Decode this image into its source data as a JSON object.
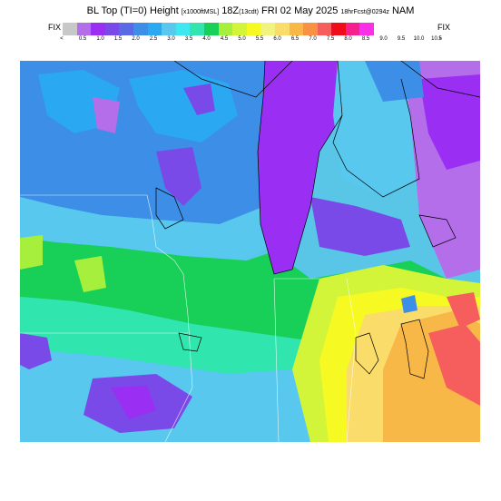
{
  "header": {
    "title_main": "BL Top (TI=0) Height",
    "title_units": "[x1000ftMSL]",
    "title_time": "18Z",
    "title_local": "(13cdt)",
    "title_date": "FRI 02 May 2025",
    "title_fcst": "18hrFcst@0294z",
    "title_model": "NAM"
  },
  "colorbar": {
    "fix_left": "FIX",
    "fix_right": "FIX",
    "less_symbol": "<",
    "greater_symbol": ">",
    "labels": [
      "0.5",
      "1.0",
      "1.5",
      "2.0",
      "2.5",
      "3.0",
      "3.5",
      "4.0",
      "4.5",
      "5.0",
      "5.5",
      "6.0",
      "6.5",
      "7.0",
      "7.5",
      "8.0",
      "8.5",
      "9.0",
      "9.5",
      "10.0",
      "10.5"
    ],
    "colors": [
      "#c8c8c8",
      "#b46eea",
      "#9a2ef2",
      "#7a4ae8",
      "#5a6ae4",
      "#3c8ee6",
      "#2aa8f2",
      "#58c8ee",
      "#3ee8f0",
      "#30e6ae",
      "#18d058",
      "#a6ef3c",
      "#d2f53a",
      "#f6fa22",
      "#f2f27e",
      "#fadc6a",
      "#f8b848",
      "#f89242",
      "#f65e5e",
      "#f00c18",
      "#f51f8e",
      "#f830e6"
    ]
  },
  "map": {
    "region": "Upper Midwest / Great Lakes",
    "colors": {
      "deep_purple": "#9a2ef2",
      "purple": "#7a4ae8",
      "lavender": "#b46eea",
      "blue": "#3c8ee6",
      "light_blue": "#2aa8f2",
      "sky": "#58c8ee",
      "cyan": "#3ee8f0",
      "teal": "#30e6ae",
      "green": "#18d058",
      "lime": "#a6ef3c",
      "yellow_green": "#d2f53a",
      "yellow": "#f6fa22",
      "light_yellow": "#f2f27e",
      "tan": "#fadc6a",
      "orange": "#f8b848",
      "dark_orange": "#f89242",
      "red": "#f65e5e"
    }
  }
}
